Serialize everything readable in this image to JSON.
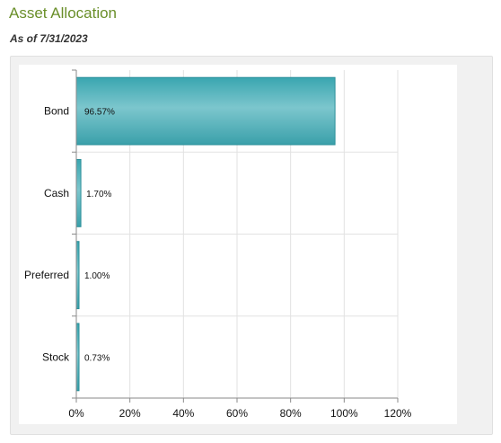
{
  "header": {
    "title": "Asset Allocation",
    "as_of": "As of 7/31/2023"
  },
  "chart_data": {
    "type": "bar",
    "orientation": "horizontal",
    "categories": [
      "Bond",
      "Cash",
      "Preferred",
      "Stock"
    ],
    "values": [
      96.57,
      1.7,
      1.0,
      0.73
    ],
    "labels": [
      "96.57%",
      "1.70%",
      "1.00%",
      "0.73%"
    ],
    "xlim": [
      0,
      120
    ],
    "xticks": [
      0,
      20,
      40,
      60,
      80,
      100,
      120
    ],
    "xtick_labels": [
      "0%",
      "20%",
      "40%",
      "60%",
      "80%",
      "100%",
      "120%"
    ],
    "grid": "vertical",
    "bar_color": "#4db3bd",
    "bar_edge_color": "#2a8f99"
  }
}
